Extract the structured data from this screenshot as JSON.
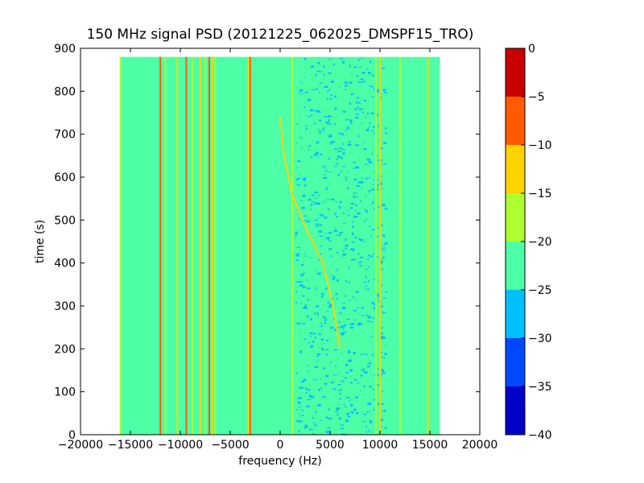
{
  "chart_data": {
    "type": "heatmap",
    "title": "150 MHz signal PSD (20121225_062025_DMSPF15_TRO)",
    "xlabel": "frequency (Hz)",
    "ylabel": "time (s)",
    "xlim": [
      -20000,
      20000
    ],
    "ylim": [
      0,
      900
    ],
    "data_extent": {
      "x": [
        -16000,
        16000
      ],
      "y": [
        0,
        880
      ]
    },
    "xticks": [
      -20000,
      -15000,
      -10000,
      -5000,
      0,
      5000,
      10000,
      15000,
      20000
    ],
    "xtick_labels": [
      "−20000",
      "−15000",
      "−10000",
      "−5000",
      "0",
      "5000",
      "10000",
      "15000",
      "20000"
    ],
    "yticks": [
      0,
      100,
      200,
      300,
      400,
      500,
      600,
      700,
      800,
      900
    ],
    "ytick_labels": [
      "0",
      "100",
      "200",
      "300",
      "400",
      "500",
      "600",
      "700",
      "800",
      "900"
    ],
    "colorbar": {
      "levels": [
        -40,
        -35,
        -30,
        -25,
        -20,
        -15,
        -10,
        -5,
        0
      ],
      "tick_labels": [
        "−40",
        "−35",
        "−30",
        "−25",
        "−20",
        "−15",
        "−10",
        "−5",
        "0"
      ],
      "colors": [
        "#0000c8",
        "#0048ff",
        "#00c0ff",
        "#4dffa6",
        "#adff30",
        "#ffd200",
        "#ff5a00",
        "#c80000"
      ]
    },
    "background_level": -22.5,
    "noise_region": {
      "x": [
        1500,
        10500
      ],
      "level_range": [
        -30,
        -20
      ]
    },
    "vertical_lines": [
      {
        "freq": -16000,
        "level": -17
      },
      {
        "freq": -12000,
        "level": -7
      },
      {
        "freq": -11500,
        "level": -17
      },
      {
        "freq": -10300,
        "level": -12
      },
      {
        "freq": -9400,
        "level": -7
      },
      {
        "freq": -8800,
        "level": -17
      },
      {
        "freq": -8000,
        "level": -12
      },
      {
        "freq": -7500,
        "level": -17
      },
      {
        "freq": -7100,
        "level": -7
      },
      {
        "freq": -6800,
        "level": -12
      },
      {
        "freq": -6500,
        "level": -17
      },
      {
        "freq": -3200,
        "level": -12
      },
      {
        "freq": -3000,
        "level": -7
      },
      {
        "freq": 1200,
        "level": -17
      },
      {
        "freq": 9600,
        "level": -17
      },
      {
        "freq": 10000,
        "level": -12
      },
      {
        "freq": 12000,
        "level": -17
      },
      {
        "freq": 14800,
        "level": -12
      }
    ],
    "doppler_trace": {
      "points": [
        {
          "t": 740,
          "f": 0
        },
        {
          "t": 650,
          "f": 400
        },
        {
          "t": 560,
          "f": 1200
        },
        {
          "t": 480,
          "f": 2600
        },
        {
          "t": 400,
          "f": 4300
        },
        {
          "t": 300,
          "f": 5300
        },
        {
          "t": 200,
          "f": 6000
        }
      ],
      "level": -12
    }
  }
}
